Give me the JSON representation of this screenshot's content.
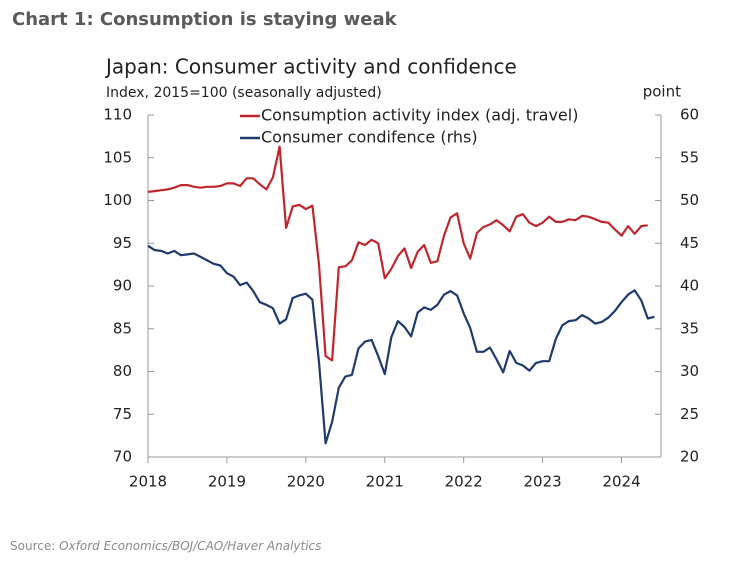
{
  "header": {
    "title": "Chart 1: Consumption is staying weak"
  },
  "chart_data": {
    "type": "line",
    "title": "Japan: Consumer activity and confidence",
    "ylabel": "Index, 2015=100 (seasonally adjusted)",
    "y2label": "point",
    "x": [
      2018.0,
      2018.083,
      2018.167,
      2018.25,
      2018.333,
      2018.417,
      2018.5,
      2018.583,
      2018.667,
      2018.75,
      2018.833,
      2018.917,
      2019.0,
      2019.083,
      2019.167,
      2019.25,
      2019.333,
      2019.417,
      2019.5,
      2019.583,
      2019.667,
      2019.75,
      2019.833,
      2019.917,
      2020.0,
      2020.083,
      2020.167,
      2020.25,
      2020.333,
      2020.417,
      2020.5,
      2020.583,
      2020.667,
      2020.75,
      2020.833,
      2020.917,
      2021.0,
      2021.083,
      2021.167,
      2021.25,
      2021.333,
      2021.417,
      2021.5,
      2021.583,
      2021.667,
      2021.75,
      2021.833,
      2021.917,
      2022.0,
      2022.083,
      2022.167,
      2022.25,
      2022.333,
      2022.417,
      2022.5,
      2022.583,
      2022.667,
      2022.75,
      2022.833,
      2022.917,
      2023.0,
      2023.083,
      2023.167,
      2023.25,
      2023.333,
      2023.417,
      2023.5,
      2023.583,
      2023.667,
      2023.75,
      2023.833,
      2023.917,
      2024.0,
      2024.083,
      2024.167,
      2024.25,
      2024.333,
      2024.417
    ],
    "series": [
      {
        "name": "Consumption activity index (adj. travel)",
        "color": "#c0272d",
        "axis": "y",
        "values": [
          101,
          101.1,
          101.2,
          101.3,
          101.5,
          101.8,
          101.8,
          101.6,
          101.5,
          101.6,
          101.6,
          101.7,
          102,
          102,
          101.7,
          102.6,
          102.6,
          101.9,
          101.3,
          102.7,
          106.3,
          96.8,
          99.3,
          99.5,
          99,
          99.4,
          92.5,
          81.8,
          81.3,
          92.2,
          92.3,
          93,
          95.1,
          94.8,
          95.4,
          95,
          90.9,
          92,
          93.5,
          94.4,
          92.1,
          94,
          94.8,
          92.7,
          92.9,
          95.9,
          98,
          98.5,
          95,
          93.2,
          96.2,
          96.9,
          97.2,
          97.7,
          97.1,
          96.4,
          98.1,
          98.4,
          97.4,
          97,
          97.4,
          98.1,
          97.5,
          97.5,
          97.8,
          97.7,
          98.2,
          98.1,
          97.8,
          97.5,
          97.4,
          96.6,
          95.9,
          97,
          96.1,
          97,
          97.1,
          null
        ]
      },
      {
        "name": "Consumer condifence (rhs)",
        "color": "#1f3a6e",
        "axis": "y2",
        "values": [
          44.7,
          44.2,
          44.1,
          43.8,
          44.1,
          43.6,
          43.7,
          43.8,
          43.4,
          43,
          42.6,
          42.4,
          41.5,
          41.1,
          40.1,
          40.4,
          39.4,
          38.1,
          37.8,
          37.4,
          35.6,
          36.1,
          38.6,
          38.9,
          39.1,
          38.4,
          31.1,
          21.6,
          24.1,
          28.1,
          29.4,
          29.6,
          32.7,
          33.5,
          33.7,
          31.8,
          29.7,
          34,
          35.9,
          35.2,
          34.1,
          36.9,
          37.5,
          37.2,
          37.8,
          39,
          39.4,
          38.9,
          36.8,
          35.1,
          32.3,
          32.3,
          32.8,
          31.4,
          29.9,
          32.4,
          31,
          30.7,
          30.1,
          31,
          31.2,
          31.2,
          33.8,
          35.4,
          35.9,
          36,
          36.6,
          36.2,
          35.6,
          35.8,
          36.3,
          37.1,
          38.1,
          39,
          39.5,
          38.3,
          36.2,
          36.4
        ]
      }
    ],
    "xlim": [
      2018,
      2024.5
    ],
    "xticks": [
      2018,
      2019,
      2020,
      2021,
      2022,
      2023,
      2024
    ],
    "ylim": [
      70,
      110
    ],
    "yticks": [
      70,
      75,
      80,
      85,
      90,
      95,
      100,
      105,
      110
    ],
    "y2lim": [
      20,
      60
    ],
    "y2ticks": [
      20,
      25,
      30,
      35,
      40,
      45,
      50,
      55,
      60
    ]
  },
  "source": {
    "label": "Source:",
    "text": "Oxford Economics/BOJ/CAO/Haver Analytics"
  }
}
